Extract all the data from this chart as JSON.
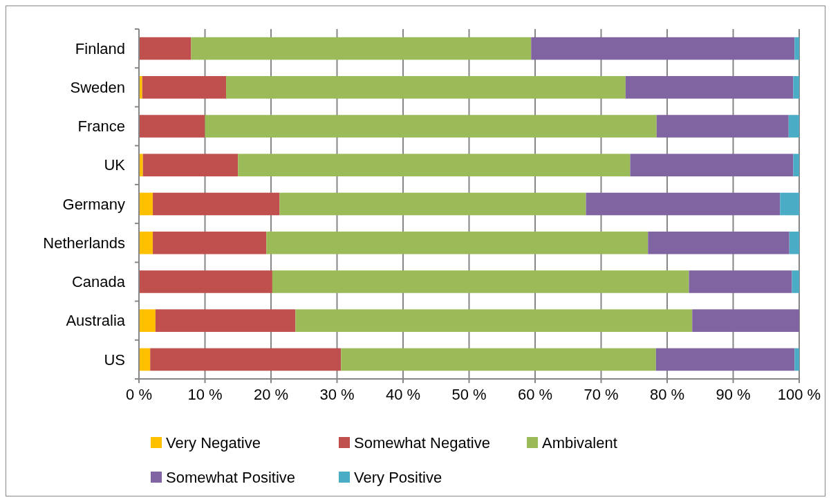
{
  "chart_data": {
    "type": "bar",
    "orientation": "horizontal",
    "stacked": true,
    "categories": [
      "Finland",
      "Sweden",
      "France",
      "UK",
      "Germany",
      "Netherlands",
      "Canada",
      "Australia",
      "US"
    ],
    "series": [
      {
        "name": "Very Negative",
        "color": "#ffc000",
        "values": [
          0,
          0.5,
          0,
          0.6,
          2.1,
          2.1,
          0,
          2.5,
          1.7
        ]
      },
      {
        "name": "Somewhat Negative",
        "color": "#c0504d",
        "values": [
          7.9,
          12.7,
          10,
          14.4,
          19.2,
          17.2,
          20.2,
          21.2,
          28.9
        ]
      },
      {
        "name": "Ambivalent",
        "color": "#9bbb59",
        "values": [
          51.5,
          60.5,
          68.4,
          59.4,
          46.4,
          57.8,
          63.1,
          60.1,
          47.7
        ]
      },
      {
        "name": "Somewhat Positive",
        "color": "#8064a2",
        "values": [
          39.9,
          25.4,
          20,
          24.7,
          29.4,
          21.4,
          15.6,
          16.2,
          21.0
        ]
      },
      {
        "name": "Very Positive",
        "color": "#4bacc6",
        "values": [
          0.7,
          0.9,
          1.6,
          0.9,
          2.9,
          1.5,
          1.1,
          0,
          0.7
        ]
      }
    ],
    "xlim": [
      0,
      100
    ],
    "xticks": [
      {
        "value": 0,
        "label": "0 %"
      },
      {
        "value": 10,
        "label": "10 %"
      },
      {
        "value": 20,
        "label": "20 %"
      },
      {
        "value": 30,
        "label": "30 %"
      },
      {
        "value": 40,
        "label": "40 %"
      },
      {
        "value": 50,
        "label": "50 %"
      },
      {
        "value": 60,
        "label": "60 %"
      },
      {
        "value": 70,
        "label": "70 %"
      },
      {
        "value": 80,
        "label": "80 %"
      },
      {
        "value": 90,
        "label": "90 %"
      },
      {
        "value": 100,
        "label": "100 %"
      }
    ],
    "grid": "x",
    "legend": "bottom"
  }
}
